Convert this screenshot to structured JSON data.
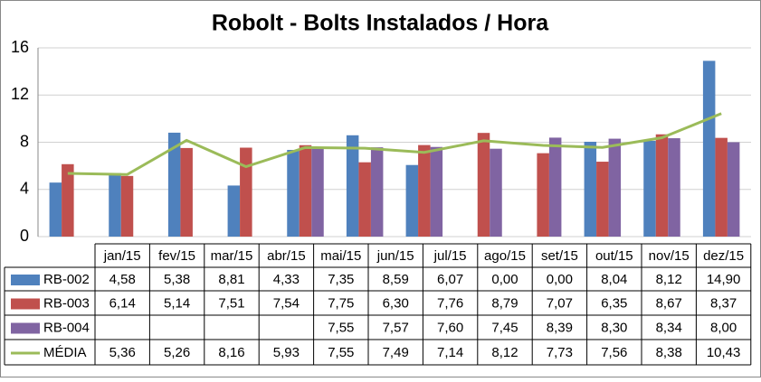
{
  "chart_data": {
    "type": "bar",
    "title": "Robolt - Bolts Instalados / Hora",
    "categories": [
      "jan/15",
      "fev/15",
      "mar/15",
      "abr/15",
      "mai/15",
      "jun/15",
      "jul/15",
      "ago/15",
      "set/15",
      "out/15",
      "nov/15",
      "dez/15"
    ],
    "series": [
      {
        "name": "RB-002",
        "type": "bar",
        "color": "#4f81bd",
        "values": [
          4.58,
          5.38,
          8.81,
          4.33,
          7.35,
          8.59,
          6.07,
          0.0,
          0.0,
          8.04,
          8.12,
          14.9
        ],
        "value_labels": [
          "4,58",
          "5,38",
          "8,81",
          "4,33",
          "7,35",
          "8,59",
          "6,07",
          "0,00",
          "0,00",
          "8,04",
          "8,12",
          "14,90"
        ]
      },
      {
        "name": "RB-003",
        "type": "bar",
        "color": "#c0504d",
        "values": [
          6.14,
          5.14,
          7.51,
          7.54,
          7.75,
          6.3,
          7.76,
          8.79,
          7.07,
          6.35,
          8.67,
          8.37
        ],
        "value_labels": [
          "6,14",
          "5,14",
          "7,51",
          "7,54",
          "7,75",
          "6,30",
          "7,76",
          "8,79",
          "7,07",
          "6,35",
          "8,67",
          "8,37"
        ]
      },
      {
        "name": "RB-004",
        "type": "bar",
        "color": "#8064a2",
        "values": [
          null,
          null,
          null,
          null,
          7.55,
          7.57,
          7.6,
          7.45,
          8.39,
          8.3,
          8.34,
          8.0
        ],
        "value_labels": [
          null,
          null,
          null,
          null,
          "7,55",
          "7,57",
          "7,60",
          "7,45",
          "8,39",
          "8,30",
          "8,34",
          "8,00"
        ]
      },
      {
        "name": "MÉDIA",
        "type": "line",
        "color": "#9bbb59",
        "values": [
          5.36,
          5.26,
          8.16,
          5.93,
          7.55,
          7.49,
          7.14,
          8.12,
          7.73,
          7.56,
          8.38,
          10.43
        ],
        "value_labels": [
          "5,36",
          "5,26",
          "8,16",
          "5,93",
          "7,55",
          "7,49",
          "7,14",
          "8,12",
          "7,73",
          "7,56",
          "8,38",
          "10,43"
        ]
      }
    ],
    "ylim": [
      0,
      16
    ],
    "yticks": [
      0,
      4,
      8,
      12,
      16
    ],
    "grid": true
  }
}
